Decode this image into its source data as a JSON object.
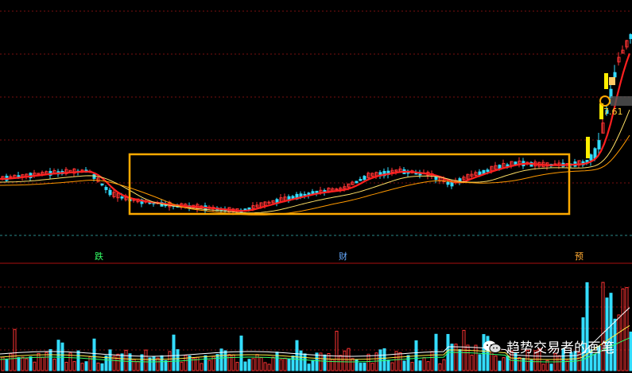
{
  "chart_data": {
    "type": "candlestick",
    "title": "",
    "xlabel": "",
    "ylabel": "",
    "price_label": "7.61",
    "event_markers": [
      {
        "label": "跌",
        "color": "#33ff66"
      },
      {
        "label": "财",
        "color": "#66aaff"
      },
      {
        "label": "预",
        "color": "#ffaa33"
      }
    ],
    "annotation": "consolidation-box",
    "colors": {
      "up": "#ff3333",
      "down": "#33ddff",
      "ma_short": "#ff2020",
      "ma_mid": "#ffe066",
      "ma_long": "#ff9900",
      "box": "#ffaa00",
      "grid": "#7a1010",
      "volume_ma_1": "#ffffff",
      "volume_ma_2": "#ffee44",
      "volume_ma_3": "#33ff66"
    }
  },
  "watermark": {
    "text": "趋势交易者的画笔",
    "icon": "wechat-icon"
  }
}
